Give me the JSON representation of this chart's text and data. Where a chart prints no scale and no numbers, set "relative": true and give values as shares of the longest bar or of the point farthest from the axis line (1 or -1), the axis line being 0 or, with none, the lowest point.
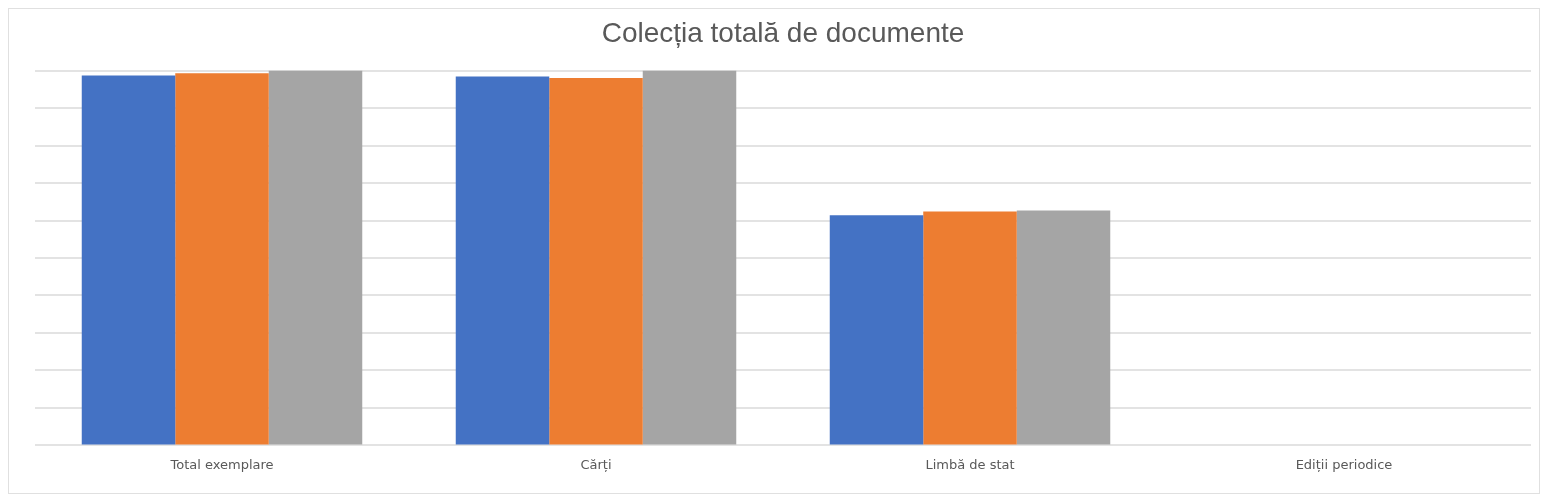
{
  "chart_data": {
    "type": "bar",
    "title": "Colecția totală de documente",
    "relative": true,
    "grid": "y",
    "legend": false,
    "categories": [
      "Total exemplare",
      "Cărți",
      "Limbă de stat",
      "Ediții periodice"
    ],
    "series": [
      {
        "color": "#4472c4",
        "values": [
          0.987,
          0.984,
          0.614,
          0
        ]
      },
      {
        "color": "#ed7d31",
        "values": [
          0.993,
          0.98,
          0.624,
          0
        ]
      },
      {
        "color": "#a5a5a5",
        "values": [
          1,
          1,
          0.627,
          0
        ]
      }
    ]
  }
}
